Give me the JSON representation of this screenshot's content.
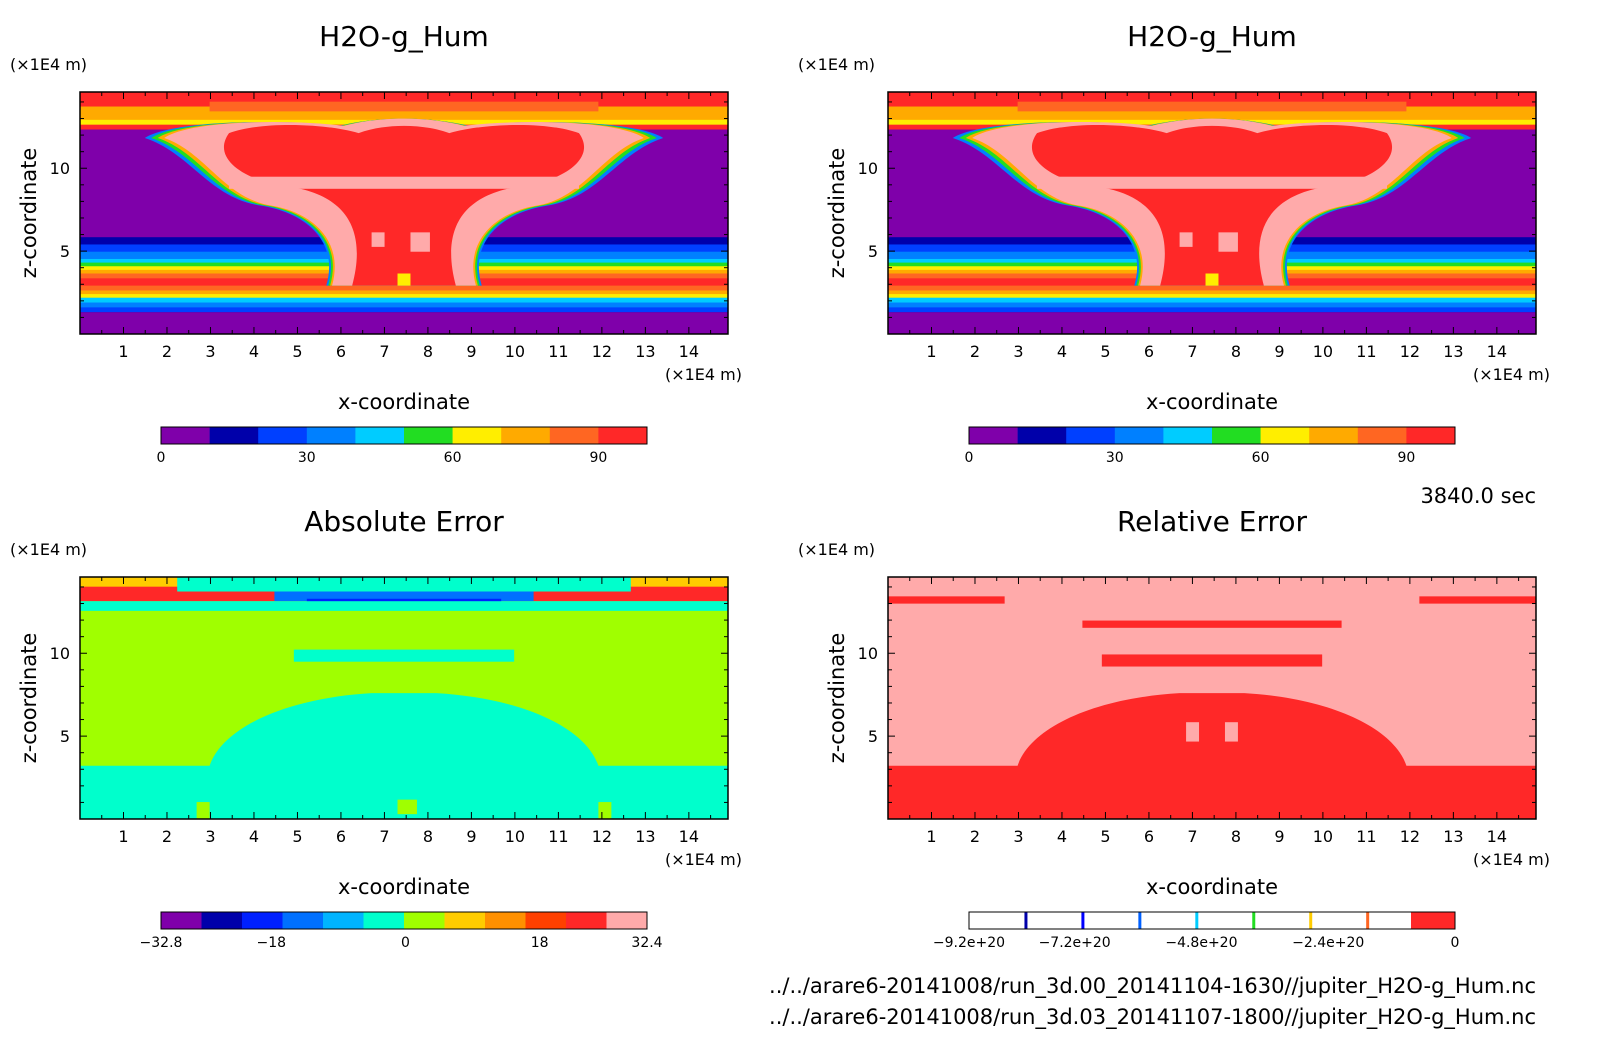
{
  "time_label": "3840.0 sec",
  "file_lines": [
    "../../arare6-20141008/run_3d.00_20141104-1630//jupiter_H2O-g_Hum.nc",
    "../../arare6-20141008/run_3d.03_20141107-1800//jupiter_H2O-g_Hum.nc"
  ],
  "chart_data": [
    {
      "type": "heatmap",
      "title": "H2O-g_Hum",
      "xlabel": "x-coordinate",
      "ylabel": "z-coordinate",
      "x_unit": "(×1E4 m)",
      "y_unit": "(×1E4 m)",
      "xlim": [
        0,
        14.9
      ],
      "ylim": [
        0,
        14.6
      ],
      "x_ticks": [
        "1",
        "2",
        "3",
        "4",
        "5",
        "6",
        "7",
        "8",
        "9",
        "10",
        "11",
        "12",
        "13",
        "14"
      ],
      "y_ticks": [
        "5",
        "10"
      ],
      "pattern": "humidity",
      "colorbar": {
        "colors": [
          "#7f00aa",
          "#0000aa",
          "#0040ff",
          "#0080ff",
          "#00ccff",
          "#22dd22",
          "#ffee00",
          "#ffaa00",
          "#ff6622",
          "#ff2828"
        ],
        "ticks": [
          "0",
          "30",
          "60",
          "90"
        ],
        "tick_values": [
          0,
          30,
          60,
          90
        ],
        "range": [
          0,
          100
        ]
      }
    },
    {
      "type": "heatmap",
      "title": "H2O-g_Hum",
      "xlabel": "x-coordinate",
      "ylabel": "z-coordinate",
      "x_unit": "(×1E4 m)",
      "y_unit": "(×1E4 m)",
      "xlim": [
        0,
        14.9
      ],
      "ylim": [
        0,
        14.6
      ],
      "x_ticks": [
        "1",
        "2",
        "3",
        "4",
        "5",
        "6",
        "7",
        "8",
        "9",
        "10",
        "11",
        "12",
        "13",
        "14"
      ],
      "y_ticks": [
        "5",
        "10"
      ],
      "pattern": "humidity",
      "colorbar": {
        "colors": [
          "#7f00aa",
          "#0000aa",
          "#0040ff",
          "#0080ff",
          "#00ccff",
          "#22dd22",
          "#ffee00",
          "#ffaa00",
          "#ff6622",
          "#ff2828"
        ],
        "ticks": [
          "0",
          "30",
          "60",
          "90"
        ],
        "tick_values": [
          0,
          30,
          60,
          90
        ],
        "range": [
          0,
          100
        ]
      }
    },
    {
      "type": "heatmap",
      "title": "Absolute Error",
      "xlabel": "x-coordinate",
      "ylabel": "z-coordinate",
      "x_unit": "(×1E4 m)",
      "y_unit": "(×1E4 m)",
      "xlim": [
        0,
        14.9
      ],
      "ylim": [
        0,
        14.6
      ],
      "x_ticks": [
        "1",
        "2",
        "3",
        "4",
        "5",
        "6",
        "7",
        "8",
        "9",
        "10",
        "11",
        "12",
        "13",
        "14"
      ],
      "y_ticks": [
        "5",
        "10"
      ],
      "pattern": "abs_error",
      "colorbar": {
        "colors": [
          "#7f00aa",
          "#0000aa",
          "#0020ff",
          "#0070ff",
          "#00b4ff",
          "#00ffcc",
          "#a0ff00",
          "#ffcc00",
          "#ff9000",
          "#ff4000",
          "#ff2828",
          "#ffaaaa"
        ],
        "ticks": [
          "−32.8",
          "−18",
          "0",
          "18",
          "32.4"
        ],
        "tick_values": [
          -32.8,
          -18,
          0,
          18,
          32.4
        ],
        "range": [
          -32.8,
          32.4
        ]
      }
    },
    {
      "type": "heatmap",
      "title": "Relative Error",
      "xlabel": "x-coordinate",
      "ylabel": "z-coordinate",
      "x_unit": "(×1E4 m)",
      "y_unit": "(×1E4 m)",
      "xlim": [
        0,
        14.9
      ],
      "ylim": [
        0,
        14.6
      ],
      "x_ticks": [
        "1",
        "2",
        "3",
        "4",
        "5",
        "6",
        "7",
        "8",
        "9",
        "10",
        "11",
        "12",
        "13",
        "14"
      ],
      "y_ticks": [
        "5",
        "10"
      ],
      "pattern": "rel_error",
      "colorbar": {
        "colors": [
          "#ffffff",
          "#0000aa",
          "#ffffff",
          "#0000ff",
          "#ffffff",
          "#0060ff",
          "#ffffff",
          "#00ccff",
          "#ffffff",
          "#22dd22",
          "#ffffff",
          "#ffcc00",
          "#ffffff",
          "#ff6622",
          "#ffffff",
          "#ff2828"
        ],
        "ticks": [
          "−9.2e+20",
          "−7.2e+20",
          "−4.8e+20",
          "−2.4e+20",
          "0"
        ],
        "tick_values": [
          -9.2e+20,
          -7.2e+20,
          -4.8e+20,
          -2.4e+20,
          0
        ],
        "range": [
          -9.2e+20,
          0
        ]
      }
    }
  ]
}
